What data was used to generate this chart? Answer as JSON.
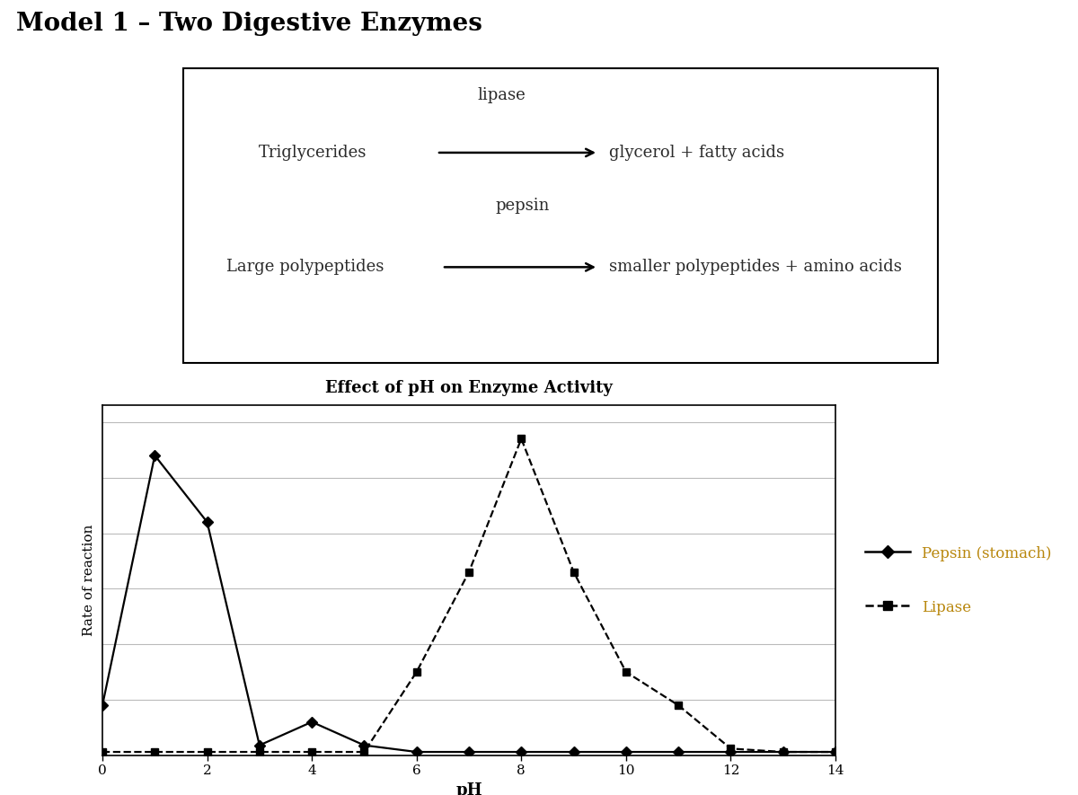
{
  "title_main": "Model 1 – Two Digestive Enzymes",
  "reaction1_enzyme": "lipase",
  "reaction1_reactant": "Triglycerides",
  "reaction1_product": "glycerol + fatty acids",
  "reaction2_enzyme": "pepsin",
  "reaction2_reactant": "Large polypeptides",
  "reaction2_product": "smaller polypeptides + amino acids",
  "chart_title": "Effect of pH on Enzyme Activity",
  "xlabel": "pH",
  "ylabel": "Rate of reaction",
  "pepsin_x": [
    0,
    1,
    2,
    3,
    4,
    5,
    6,
    7,
    8,
    9,
    10,
    11,
    12,
    13,
    14
  ],
  "pepsin_y": [
    1.5,
    9,
    7,
    0.3,
    1.0,
    0.3,
    0.1,
    0.1,
    0.1,
    0.1,
    0.1,
    0.1,
    0.1,
    0.1,
    0.1
  ],
  "lipase_x": [
    0,
    1,
    2,
    3,
    4,
    5,
    6,
    7,
    8,
    9,
    10,
    11,
    12,
    13,
    14
  ],
  "lipase_y": [
    0.1,
    0.1,
    0.1,
    0.1,
    0.1,
    0.1,
    2.5,
    5.5,
    9.5,
    5.5,
    2.5,
    1.5,
    0.2,
    0.1,
    0.1
  ],
  "ylim": [
    0,
    10.5
  ],
  "xlim": [
    0,
    14
  ],
  "xticks": [
    0,
    2,
    4,
    6,
    8,
    10,
    12,
    14
  ],
  "yticks_count": 7,
  "pepsin_color": "#000000",
  "lipase_color": "#000000",
  "bg_color": "#ffffff",
  "legend_pepsin": "Pepsin (stomach)",
  "legend_lipase": "Lipase",
  "legend_text_color": "#b8860b",
  "grid_color": "#bbbbbb",
  "box_color": "#000000",
  "title_color": "#000000",
  "text_color": "#2b2b2b"
}
